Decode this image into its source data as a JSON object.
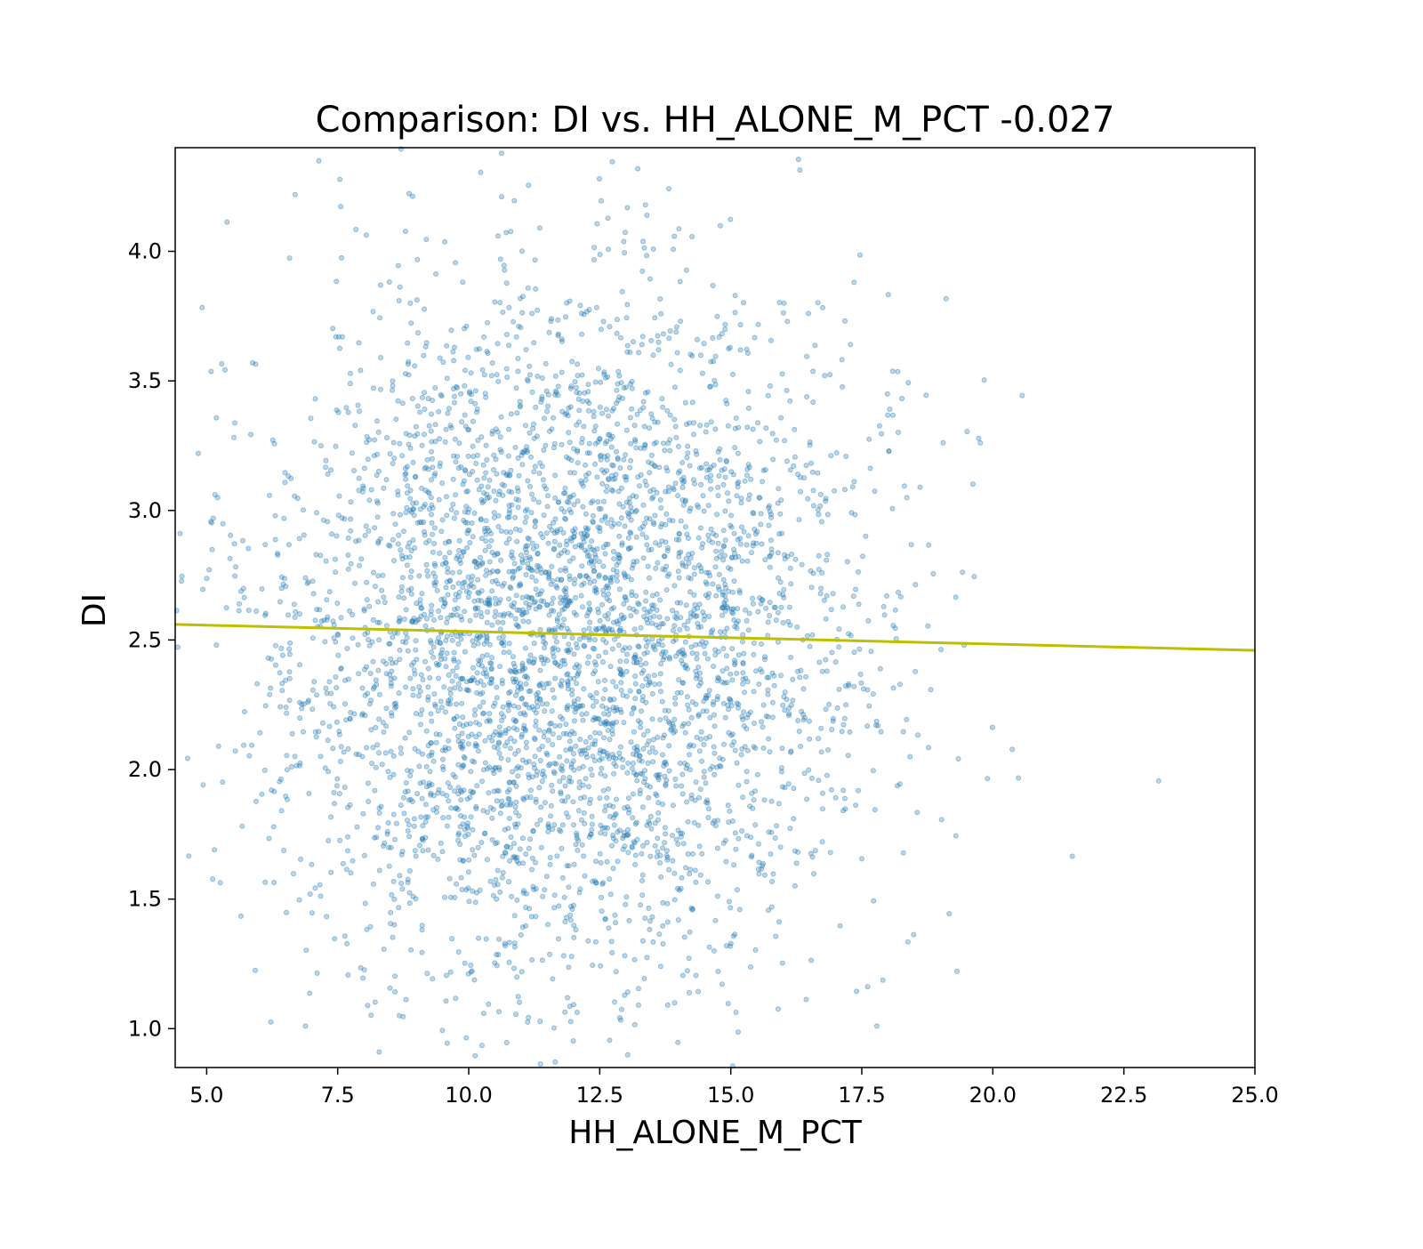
{
  "chart_data": {
    "type": "scatter",
    "title": "Comparison:  DI  vs.  HH_ALONE_M_PCT  -0.027",
    "xlabel": "HH_ALONE_M_PCT",
    "ylabel": "DI",
    "xlim": [
      4.4,
      25.0
    ],
    "ylim": [
      0.85,
      4.4
    ],
    "x_ticks": [
      "5.0",
      "7.5",
      "10.0",
      "12.5",
      "15.0",
      "17.5",
      "20.0",
      "22.5",
      "25.0"
    ],
    "x_tick_values": [
      5.0,
      7.5,
      10.0,
      12.5,
      15.0,
      17.5,
      20.0,
      22.5,
      25.0
    ],
    "y_ticks": [
      "1.0",
      "1.5",
      "2.0",
      "2.5",
      "3.0",
      "3.5",
      "4.0"
    ],
    "y_tick_values": [
      1.0,
      1.5,
      2.0,
      2.5,
      3.0,
      3.5,
      4.0
    ],
    "correlation": -0.027,
    "trend_line": {
      "x": [
        4.4,
        25.0
      ],
      "y": [
        2.56,
        2.46
      ]
    },
    "colors": {
      "points": "#1f77b4",
      "trend_line": "#bfbf00",
      "axes": "#000000"
    },
    "point_opacity": 0.3,
    "point_count": 4200,
    "point_model": {
      "center_x": 11.8,
      "center_y": 2.5,
      "sd_x": 2.8,
      "sd_y": 0.65,
      "random_seed": 20240611
    },
    "grid": false,
    "legend": "none"
  }
}
